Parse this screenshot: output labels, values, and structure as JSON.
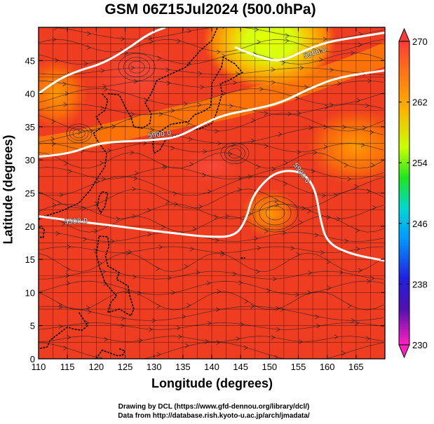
{
  "title": "GSM 06Z15Jul2024 (500.0hPa)",
  "xlabel": "Longitude (degrees)",
  "ylabel": "Latitude  (degrees)",
  "credits": {
    "line1": "Drawing by DCL (https://www.gfd-dennou.org/library/dcl/)",
    "line2": "Data from http://database.rish.kyoto-u.ac.jp/arch/jmadata/"
  },
  "chart_data": {
    "type": "heatmap",
    "x_ticks": [
      110,
      115,
      120,
      125,
      130,
      135,
      140,
      145,
      150,
      155,
      160,
      165
    ],
    "y_ticks": [
      0,
      5,
      10,
      15,
      20,
      25,
      30,
      35,
      40,
      45
    ],
    "xlim": [
      110,
      170
    ],
    "ylim": [
      0,
      50
    ],
    "colorbar": {
      "min": 230,
      "max": 270,
      "ticks": [
        230,
        238,
        246,
        254,
        262,
        270
      ]
    },
    "contour_label": "5900.0",
    "contours": [
      {
        "label": "5900.0",
        "points": [
          [
            110,
            40
          ],
          [
            113,
            42
          ],
          [
            117,
            43.5
          ],
          [
            121,
            44.5
          ],
          [
            125,
            46.5
          ],
          [
            129,
            49
          ],
          [
            132,
            50
          ]
        ]
      },
      {
        "label": "5900.0",
        "points": [
          [
            144,
            47
          ],
          [
            148,
            45.5
          ],
          [
            152,
            44.8
          ],
          [
            156,
            46.5
          ],
          [
            160,
            47.8
          ],
          [
            165,
            48.5
          ],
          [
            170,
            49.2
          ]
        ]
      },
      {
        "label": "5900.0",
        "points": [
          [
            110,
            30.5
          ],
          [
            115,
            30.8
          ],
          [
            120,
            32.5
          ],
          [
            125,
            32.8
          ],
          [
            130,
            33
          ],
          [
            134,
            33.4
          ],
          [
            138,
            35.2
          ],
          [
            142,
            36.8
          ],
          [
            147,
            37.6
          ],
          [
            152,
            38.6
          ],
          [
            157,
            40.8
          ],
          [
            162,
            42.5
          ],
          [
            170,
            43.5
          ]
        ]
      },
      {
        "label": "5900.0",
        "points": [
          [
            110,
            21.5
          ],
          [
            116,
            20.8
          ],
          [
            122,
            20.2
          ],
          [
            128,
            19.5
          ],
          [
            134,
            18.9
          ],
          [
            139,
            18.4
          ],
          [
            144,
            18.4
          ],
          [
            146,
            21
          ],
          [
            147,
            24.5
          ],
          [
            150,
            27.6
          ],
          [
            153,
            28.5
          ],
          [
            156,
            28
          ],
          [
            158,
            25.5
          ],
          [
            158.8,
            21
          ],
          [
            160,
            17.5
          ],
          [
            164,
            15.8
          ],
          [
            170,
            14.8
          ]
        ]
      }
    ],
    "color_field_notes": "warm red over most of domain, orange band along 30-40N, green-yellow cold pocket near 145-155E 45-50N"
  }
}
